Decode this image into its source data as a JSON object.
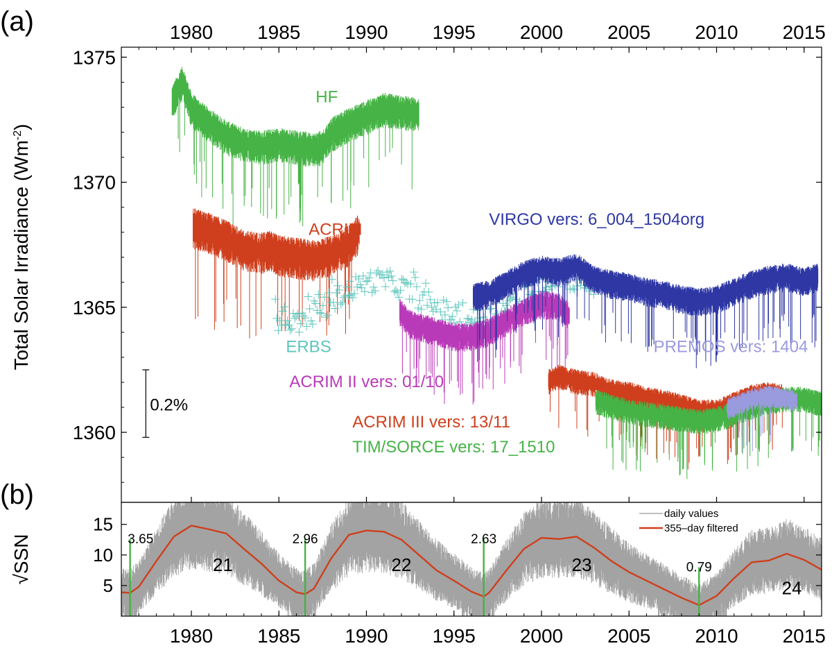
{
  "panel_labels": {
    "a": "(a)",
    "b": "(b)"
  },
  "chart_data": [
    {
      "panel": "a",
      "type": "line",
      "ylabel_main": "Total Solar Irradiance (Wm",
      "ylabel_sup": "-2",
      "ylabel_close": ")",
      "xlim": [
        1976,
        2016
      ],
      "ylim": [
        1357.2,
        1375.4
      ],
      "x_ticks": [
        "1980",
        "1985",
        "1990",
        "1995",
        "2000",
        "2005",
        "2010",
        "2015"
      ],
      "x_tick_values": [
        1980,
        1985,
        1990,
        1995,
        2000,
        2005,
        2010,
        2015
      ],
      "y_ticks": [
        "1360",
        "1365",
        "1370",
        "1375"
      ],
      "y_tick_values": [
        1360,
        1365,
        1370,
        1375
      ],
      "scale_bar": {
        "label": "0.2%",
        "from": 1359.8,
        "to": 1362.5,
        "year": 1977.4
      },
      "series": [
        {
          "name": "HF",
          "label": "HF",
          "color": "#45b345",
          "style": "line",
          "noise": 0.55,
          "label_pos": [
            1987.1,
            1373.2
          ],
          "x": [
            1978.9,
            1979.5,
            1980.0,
            1981.0,
            1982.0,
            1983.0,
            1984.0,
            1985.0,
            1986.0,
            1987.0,
            1987.5,
            1988.0,
            1989.0,
            1990.0,
            1991.0,
            1992.0,
            1993.0
          ],
          "y": [
            1373.3,
            1374.1,
            1373.0,
            1372.4,
            1371.9,
            1371.6,
            1371.5,
            1371.6,
            1371.5,
            1371.4,
            1371.5,
            1372.0,
            1372.4,
            1372.7,
            1373.0,
            1372.9,
            1372.8
          ]
        },
        {
          "name": "ACRIM",
          "label": "ACRIM",
          "color": "#cf3f1d",
          "style": "line",
          "noise": 0.65,
          "label_pos": [
            1986.7,
            1367.9
          ],
          "x": [
            1980.1,
            1981.0,
            1982.0,
            1983.0,
            1984.0,
            1984.5,
            1985.0,
            1986.0,
            1987.0,
            1988.0,
            1989.0,
            1989.6
          ],
          "y": [
            1368.3,
            1368.1,
            1367.8,
            1367.4,
            1367.3,
            1367.4,
            1367.2,
            1367.1,
            1367.0,
            1367.2,
            1367.6,
            1368.1
          ]
        },
        {
          "name": "ERBS",
          "label": "ERBS",
          "color": "#5dc6bc",
          "style": "plus",
          "noise": 0.45,
          "label_pos": [
            1985.4,
            1363.2
          ],
          "x": [
            1984.8,
            1985.5,
            1986.0,
            1986.5,
            1987.0,
            1988.0,
            1989.0,
            1990.0,
            1991.0,
            1992.0,
            1993.0,
            1994.0,
            1995.0,
            1996.0,
            1997.0,
            1998.0,
            1999.0,
            2000.0,
            2001.0,
            2002.0,
            2003.0
          ],
          "y": [
            1364.9,
            1364.5,
            1364.4,
            1364.5,
            1364.8,
            1365.3,
            1365.7,
            1366.0,
            1366.1,
            1365.8,
            1365.4,
            1365.0,
            1364.7,
            1364.5,
            1364.6,
            1365.0,
            1365.6,
            1366.0,
            1366.2,
            1366.1,
            1365.8
          ]
        },
        {
          "name": "ACRIM II",
          "label": "ACRIM II vers: 01/10",
          "color": "#b93ab8",
          "style": "line",
          "noise": 0.45,
          "label_pos": [
            1985.6,
            1361.8
          ],
          "x": [
            1991.9,
            1992.5,
            1993.0,
            1994.0,
            1995.0,
            1996.0,
            1997.0,
            1998.0,
            1999.0,
            2000.0,
            2001.0,
            2001.6
          ],
          "y": [
            1364.9,
            1364.4,
            1364.3,
            1364.1,
            1363.9,
            1363.9,
            1364.1,
            1364.5,
            1364.9,
            1365.2,
            1365.1,
            1364.7
          ]
        },
        {
          "name": "VIRGO",
          "label": "VIRGO vers: 6_004_1504org",
          "color": "#2e37a4",
          "style": "line",
          "noise": 0.45,
          "label_pos": [
            1997.0,
            1368.3
          ],
          "x": [
            1996.1,
            1997.0,
            1998.0,
            1999.0,
            2000.0,
            2001.0,
            2002.0,
            2003.0,
            2004.0,
            2005.0,
            2006.0,
            2007.0,
            2008.0,
            2009.0,
            2010.0,
            2011.0,
            2012.0,
            2013.0,
            2014.0,
            2015.0,
            2015.8
          ],
          "y": [
            1365.5,
            1365.6,
            1366.0,
            1366.4,
            1366.6,
            1366.5,
            1366.7,
            1366.2,
            1366.0,
            1365.9,
            1365.7,
            1365.6,
            1365.4,
            1365.3,
            1365.4,
            1365.7,
            1366.0,
            1366.2,
            1366.3,
            1366.1,
            1366.3
          ]
        },
        {
          "name": "ACRIM III",
          "label": "ACRIM III vers: 13/11",
          "color": "#cf3f1d",
          "style": "line",
          "noise": 0.4,
          "label_pos": [
            1989.2,
            1360.2
          ],
          "x": [
            2000.4,
            2001.0,
            2002.0,
            2003.0,
            2004.0,
            2005.0,
            2006.0,
            2007.0,
            2008.0,
            2009.0,
            2010.0,
            2011.0,
            2012.0,
            2013.0,
            2013.8
          ],
          "y": [
            1362.1,
            1362.3,
            1362.1,
            1362.0,
            1361.7,
            1361.6,
            1361.4,
            1361.3,
            1361.1,
            1360.9,
            1360.9,
            1361.2,
            1361.5,
            1361.6,
            1361.5
          ]
        },
        {
          "name": "TIM/SORCE",
          "label": "TIM/SORCE vers: 17_1510",
          "color": "#45b345",
          "style": "line",
          "noise": 0.4,
          "label_pos": [
            1989.2,
            1359.2
          ],
          "x": [
            2003.1,
            2004.0,
            2005.0,
            2006.0,
            2007.0,
            2008.0,
            2009.0,
            2010.0,
            2011.0,
            2012.0,
            2013.0,
            2014.0,
            2015.0,
            2016.0
          ],
          "y": [
            1361.3,
            1361.1,
            1360.9,
            1360.8,
            1360.7,
            1360.6,
            1360.5,
            1360.6,
            1360.8,
            1361.1,
            1361.3,
            1361.4,
            1361.4,
            1361.2
          ]
        },
        {
          "name": "PREMOS",
          "label": "PREMOS vers: 1404",
          "color": "#9a9adf",
          "style": "line",
          "noise": 0.35,
          "label_pos": [
            2006.4,
            1363.2
          ],
          "x": [
            2010.6,
            2011.0,
            2012.0,
            2013.0,
            2014.0,
            2014.6
          ],
          "y": [
            1361.0,
            1361.1,
            1361.4,
            1361.5,
            1361.4,
            1361.3
          ]
        }
      ]
    },
    {
      "panel": "b",
      "type": "line",
      "ylabel": "√SSN",
      "xlim": [
        1976,
        2016
      ],
      "ylim": [
        0,
        18.6
      ],
      "x_ticks": [
        "1980",
        "1985",
        "1990",
        "1995",
        "2000",
        "2005",
        "2010",
        "2015"
      ],
      "x_tick_values": [
        1980,
        1985,
        1990,
        1995,
        2000,
        2005,
        2010,
        2015
      ],
      "y_ticks": [
        "5",
        "10",
        "15"
      ],
      "y_tick_values": [
        5,
        10,
        15
      ],
      "legend": {
        "position": "top-right",
        "entries": [
          "daily values",
          "355–day filtered"
        ]
      },
      "daily_color": "#999999",
      "filtered_color": "#cf3f1d",
      "minima_color": "#45b345",
      "filtered": {
        "x": [
          1976.0,
          1976.5,
          1977.0,
          1978.0,
          1979.0,
          1980.0,
          1981.0,
          1982.0,
          1983.0,
          1984.0,
          1985.0,
          1986.0,
          1986.5,
          1987.0,
          1988.0,
          1989.0,
          1990.0,
          1991.0,
          1992.0,
          1993.0,
          1994.0,
          1995.0,
          1996.0,
          1996.7,
          1997.0,
          1998.0,
          1999.0,
          2000.0,
          2001.0,
          2002.0,
          2003.0,
          2004.0,
          2005.0,
          2006.0,
          2007.0,
          2008.0,
          2009.0,
          2010.0,
          2011.0,
          2012.0,
          2013.0,
          2014.0,
          2015.0,
          2016.0
        ],
        "y": [
          3.9,
          3.8,
          4.8,
          9.0,
          13.0,
          14.8,
          14.2,
          13.5,
          11.0,
          8.6,
          5.8,
          3.9,
          3.6,
          4.5,
          9.5,
          13.3,
          14.0,
          13.8,
          12.5,
          10.0,
          7.5,
          5.8,
          4.0,
          3.2,
          3.8,
          7.5,
          11.0,
          12.8,
          12.6,
          13.0,
          11.2,
          9.0,
          7.2,
          5.8,
          4.4,
          3.0,
          1.8,
          3.3,
          6.2,
          8.8,
          9.1,
          10.2,
          9.2,
          7.6
        ]
      },
      "cycles": [
        {
          "label": "21",
          "x": 1981.8,
          "y": 7.4
        },
        {
          "label": "22",
          "x": 1992.0,
          "y": 7.4
        },
        {
          "label": "23",
          "x": 2002.3,
          "y": 7.4
        },
        {
          "label": "24",
          "x": 2014.3,
          "y": 3.6
        }
      ],
      "minima": [
        {
          "label": "3.65",
          "x": 1976.5,
          "label_x": 1977.1,
          "top": 12.6
        },
        {
          "label": "2.96",
          "x": 1986.5,
          "label_x": 1986.5,
          "top": 12.6
        },
        {
          "label": "2.63",
          "x": 1996.7,
          "label_x": 1996.7,
          "top": 12.6
        },
        {
          "label": "0.79",
          "x": 2009.0,
          "label_x": 2009.0,
          "top": 8.0
        }
      ]
    }
  ]
}
